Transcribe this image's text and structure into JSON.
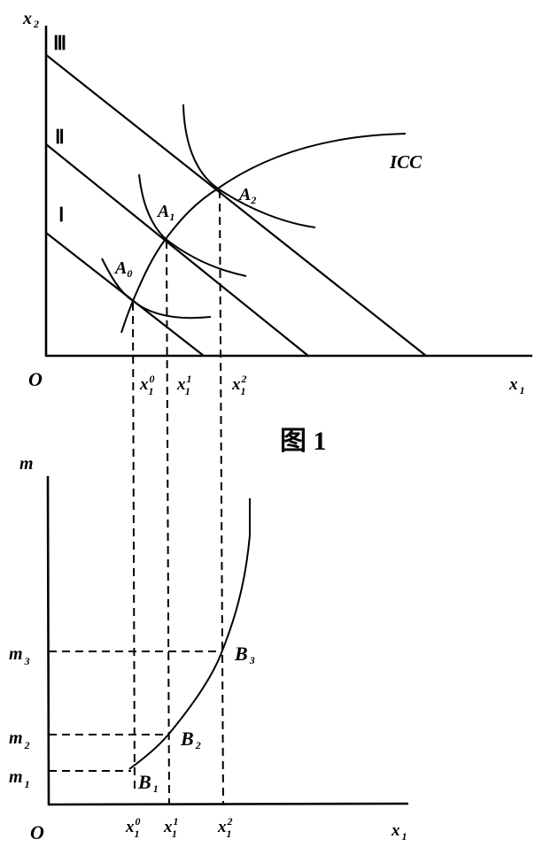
{
  "figure_caption": "图 1",
  "top_panel": {
    "y_axis_label": {
      "base": "x",
      "sub": "2"
    },
    "x_axis_label": {
      "base": "x",
      "sub": "1"
    },
    "origin_label": "O",
    "budget_lines": [
      "Ⅲ",
      "Ⅱ",
      "Ⅰ"
    ],
    "curve_label": "ICC",
    "points": [
      {
        "base": "A",
        "sub": "0"
      },
      {
        "base": "A",
        "sub": "1"
      },
      {
        "base": "A",
        "sub": "2"
      }
    ],
    "x_ticks": [
      {
        "base": "x",
        "sub": "1",
        "sup": "0"
      },
      {
        "base": "x",
        "sub": "1",
        "sup": "1"
      },
      {
        "base": "x",
        "sub": "1",
        "sup": "2"
      }
    ]
  },
  "bottom_panel": {
    "y_axis_label": "m",
    "x_axis_label": {
      "base": "x",
      "sub": "1"
    },
    "origin_label": "O",
    "y_ticks": [
      {
        "base": "m",
        "sub": "3"
      },
      {
        "base": "m",
        "sub": "2"
      },
      {
        "base": "m",
        "sub": "1"
      }
    ],
    "points": [
      {
        "base": "B",
        "sub": "1"
      },
      {
        "base": "B",
        "sub": "2"
      },
      {
        "base": "B",
        "sub": "3"
      }
    ],
    "x_ticks": [
      {
        "base": "x",
        "sub": "1",
        "sup": "0"
      },
      {
        "base": "x",
        "sub": "1",
        "sup": "1"
      },
      {
        "base": "x",
        "sub": "1",
        "sup": "2"
      }
    ]
  }
}
